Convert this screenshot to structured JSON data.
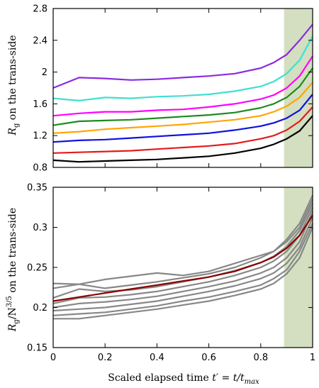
{
  "chart_data": [
    {
      "type": "line",
      "title": "",
      "xlabel": "",
      "ylabel": "R_g on the trans-side",
      "ylabel_parts": {
        "pre": "R",
        "sub": "g",
        "post": " on the trans-side"
      },
      "xlim": [
        0,
        1
      ],
      "ylim": [
        0.8,
        2.8
      ],
      "xticks": [
        0,
        0.2,
        0.4,
        0.6,
        0.8,
        1
      ],
      "yticks": [
        0.8,
        1.2,
        1.6,
        2,
        2.4,
        2.8
      ],
      "ytick_labels": [
        "0.8",
        "1.2",
        "1.6",
        "2",
        "2.4",
        "2.8"
      ],
      "show_xtick_labels": false,
      "shaded_region": {
        "x": [
          0.89,
          1.0
        ],
        "color": "#d3dfc0"
      },
      "grid": false,
      "legend": "none",
      "series": [
        {
          "color": "#000000",
          "x": [
            0,
            0.1,
            0.2,
            0.3,
            0.4,
            0.5,
            0.6,
            0.7,
            0.8,
            0.85,
            0.9,
            0.95,
            1.0
          ],
          "y": [
            0.89,
            0.87,
            0.88,
            0.89,
            0.9,
            0.92,
            0.94,
            0.98,
            1.04,
            1.09,
            1.16,
            1.26,
            1.45
          ]
        },
        {
          "color": "#e41a1c",
          "x": [
            0,
            0.1,
            0.2,
            0.3,
            0.4,
            0.5,
            0.6,
            0.7,
            0.8,
            0.85,
            0.9,
            0.95,
            1.0
          ],
          "y": [
            0.98,
            0.99,
            1.0,
            1.01,
            1.03,
            1.05,
            1.07,
            1.1,
            1.16,
            1.2,
            1.27,
            1.38,
            1.56
          ]
        },
        {
          "color": "#1010e0",
          "x": [
            0,
            0.1,
            0.2,
            0.3,
            0.4,
            0.5,
            0.6,
            0.7,
            0.8,
            0.85,
            0.9,
            0.95,
            1.0
          ],
          "y": [
            1.12,
            1.14,
            1.15,
            1.17,
            1.19,
            1.21,
            1.23,
            1.27,
            1.32,
            1.36,
            1.42,
            1.52,
            1.72
          ]
        },
        {
          "color": "#ffa500",
          "x": [
            0,
            0.1,
            0.2,
            0.3,
            0.4,
            0.5,
            0.6,
            0.7,
            0.8,
            0.85,
            0.9,
            0.95,
            1.0
          ],
          "y": [
            1.23,
            1.25,
            1.28,
            1.3,
            1.32,
            1.34,
            1.37,
            1.4,
            1.45,
            1.5,
            1.57,
            1.68,
            1.87
          ]
        },
        {
          "color": "#1f8a1f",
          "x": [
            0,
            0.1,
            0.2,
            0.3,
            0.4,
            0.5,
            0.6,
            0.7,
            0.8,
            0.85,
            0.9,
            0.95,
            1.0
          ],
          "y": [
            1.33,
            1.38,
            1.39,
            1.4,
            1.42,
            1.44,
            1.46,
            1.49,
            1.55,
            1.6,
            1.68,
            1.82,
            2.05
          ]
        },
        {
          "color": "#ff00ff",
          "x": [
            0,
            0.1,
            0.2,
            0.3,
            0.4,
            0.5,
            0.6,
            0.7,
            0.8,
            0.85,
            0.9,
            0.95,
            1.0
          ],
          "y": [
            1.45,
            1.48,
            1.5,
            1.5,
            1.52,
            1.53,
            1.56,
            1.6,
            1.66,
            1.71,
            1.8,
            1.95,
            2.2
          ]
        },
        {
          "color": "#40e0d0",
          "x": [
            0,
            0.1,
            0.2,
            0.3,
            0.4,
            0.5,
            0.6,
            0.7,
            0.8,
            0.85,
            0.9,
            0.95,
            1.0
          ],
          "y": [
            1.67,
            1.64,
            1.68,
            1.67,
            1.69,
            1.7,
            1.72,
            1.76,
            1.82,
            1.88,
            1.98,
            2.15,
            2.45
          ]
        },
        {
          "color": "#8a2be2",
          "x": [
            0,
            0.1,
            0.2,
            0.3,
            0.4,
            0.5,
            0.6,
            0.7,
            0.8,
            0.85,
            0.9,
            0.95,
            1.0
          ],
          "y": [
            1.8,
            1.93,
            1.92,
            1.9,
            1.91,
            1.93,
            1.95,
            1.98,
            2.05,
            2.12,
            2.22,
            2.4,
            2.6
          ]
        }
      ]
    },
    {
      "type": "line",
      "title": "",
      "xlabel": "Scaled elapsed time t′ = t/t_max",
      "xlabel_parts": {
        "pre": "Scaled elapsed time ",
        "math": "t′ = t/t",
        "sub": "max"
      },
      "ylabel": "R_g/N^{3/5} on the trans-side",
      "ylabel_parts": {
        "pre": "R",
        "sub": "g",
        "mid": "/N",
        "sup": "3/5",
        "post": " on the trans-side"
      },
      "xlim": [
        0,
        1
      ],
      "ylim": [
        0.15,
        0.35
      ],
      "xticks": [
        0,
        0.2,
        0.4,
        0.6,
        0.8,
        1
      ],
      "xtick_labels": [
        "0",
        "0.2",
        "0.4",
        "0.6",
        "0.8",
        "1"
      ],
      "yticks": [
        0.15,
        0.2,
        0.25,
        0.3,
        0.35
      ],
      "ytick_labels": [
        "0.15",
        "0.2",
        "0.25",
        "0.3",
        "0.35"
      ],
      "shaded_region": {
        "x": [
          0.89,
          1.0
        ],
        "color": "#d3dfc0"
      },
      "grid": false,
      "legend": "none",
      "series": [
        {
          "color": "#888888",
          "x": [
            0,
            0.1,
            0.2,
            0.3,
            0.4,
            0.5,
            0.6,
            0.7,
            0.8,
            0.85,
            0.9,
            0.95,
            1.0
          ],
          "y": [
            0.23,
            0.229,
            0.235,
            0.239,
            0.243,
            0.24,
            0.245,
            0.255,
            0.265,
            0.27,
            0.285,
            0.305,
            0.34
          ]
        },
        {
          "color": "#888888",
          "x": [
            0,
            0.1,
            0.2,
            0.3,
            0.4,
            0.5,
            0.6,
            0.7,
            0.8,
            0.85,
            0.9,
            0.95,
            1.0
          ],
          "y": [
            0.224,
            0.229,
            0.224,
            0.228,
            0.232,
            0.237,
            0.242,
            0.25,
            0.262,
            0.27,
            0.282,
            0.3,
            0.335
          ]
        },
        {
          "color": "#888888",
          "x": [
            0,
            0.1,
            0.2,
            0.3,
            0.4,
            0.5,
            0.6,
            0.7,
            0.8,
            0.85,
            0.9,
            0.95,
            1.0
          ],
          "y": [
            0.212,
            0.223,
            0.22,
            0.222,
            0.226,
            0.232,
            0.238,
            0.246,
            0.256,
            0.264,
            0.276,
            0.296,
            0.33
          ]
        },
        {
          "color": "#888888",
          "x": [
            0,
            0.1,
            0.2,
            0.3,
            0.4,
            0.5,
            0.6,
            0.7,
            0.8,
            0.85,
            0.9,
            0.95,
            1.0
          ],
          "y": [
            0.205,
            0.212,
            0.213,
            0.216,
            0.22,
            0.226,
            0.232,
            0.24,
            0.25,
            0.258,
            0.27,
            0.29,
            0.325
          ]
        },
        {
          "color": "#888888",
          "x": [
            0,
            0.1,
            0.2,
            0.3,
            0.4,
            0.5,
            0.6,
            0.7,
            0.8,
            0.85,
            0.9,
            0.95,
            1.0
          ],
          "y": [
            0.2,
            0.205,
            0.207,
            0.21,
            0.214,
            0.22,
            0.226,
            0.233,
            0.243,
            0.25,
            0.262,
            0.282,
            0.32
          ]
        },
        {
          "color": "#888888",
          "x": [
            0,
            0.1,
            0.2,
            0.3,
            0.4,
            0.5,
            0.6,
            0.7,
            0.8,
            0.85,
            0.9,
            0.95,
            1.0
          ],
          "y": [
            0.196,
            0.198,
            0.2,
            0.204,
            0.208,
            0.214,
            0.22,
            0.227,
            0.236,
            0.243,
            0.255,
            0.275,
            0.312
          ]
        },
        {
          "color": "#888888",
          "x": [
            0,
            0.1,
            0.2,
            0.3,
            0.4,
            0.5,
            0.6,
            0.7,
            0.8,
            0.85,
            0.9,
            0.95,
            1.0
          ],
          "y": [
            0.19,
            0.192,
            0.194,
            0.198,
            0.202,
            0.208,
            0.213,
            0.22,
            0.228,
            0.236,
            0.247,
            0.27,
            0.305
          ]
        },
        {
          "color": "#888888",
          "x": [
            0,
            0.1,
            0.2,
            0.3,
            0.4,
            0.5,
            0.6,
            0.7,
            0.8,
            0.85,
            0.9,
            0.95,
            1.0
          ],
          "y": [
            0.186,
            0.186,
            0.19,
            0.194,
            0.198,
            0.203,
            0.208,
            0.215,
            0.223,
            0.23,
            0.242,
            0.262,
            0.3
          ]
        },
        {
          "color": "#8b0000",
          "x": [
            0,
            0.1,
            0.2,
            0.3,
            0.4,
            0.5,
            0.6,
            0.7,
            0.8,
            0.85,
            0.9,
            0.95,
            1.0
          ],
          "y": [
            0.208,
            0.213,
            0.218,
            0.223,
            0.228,
            0.233,
            0.238,
            0.245,
            0.256,
            0.263,
            0.274,
            0.29,
            0.315
          ]
        }
      ]
    }
  ]
}
